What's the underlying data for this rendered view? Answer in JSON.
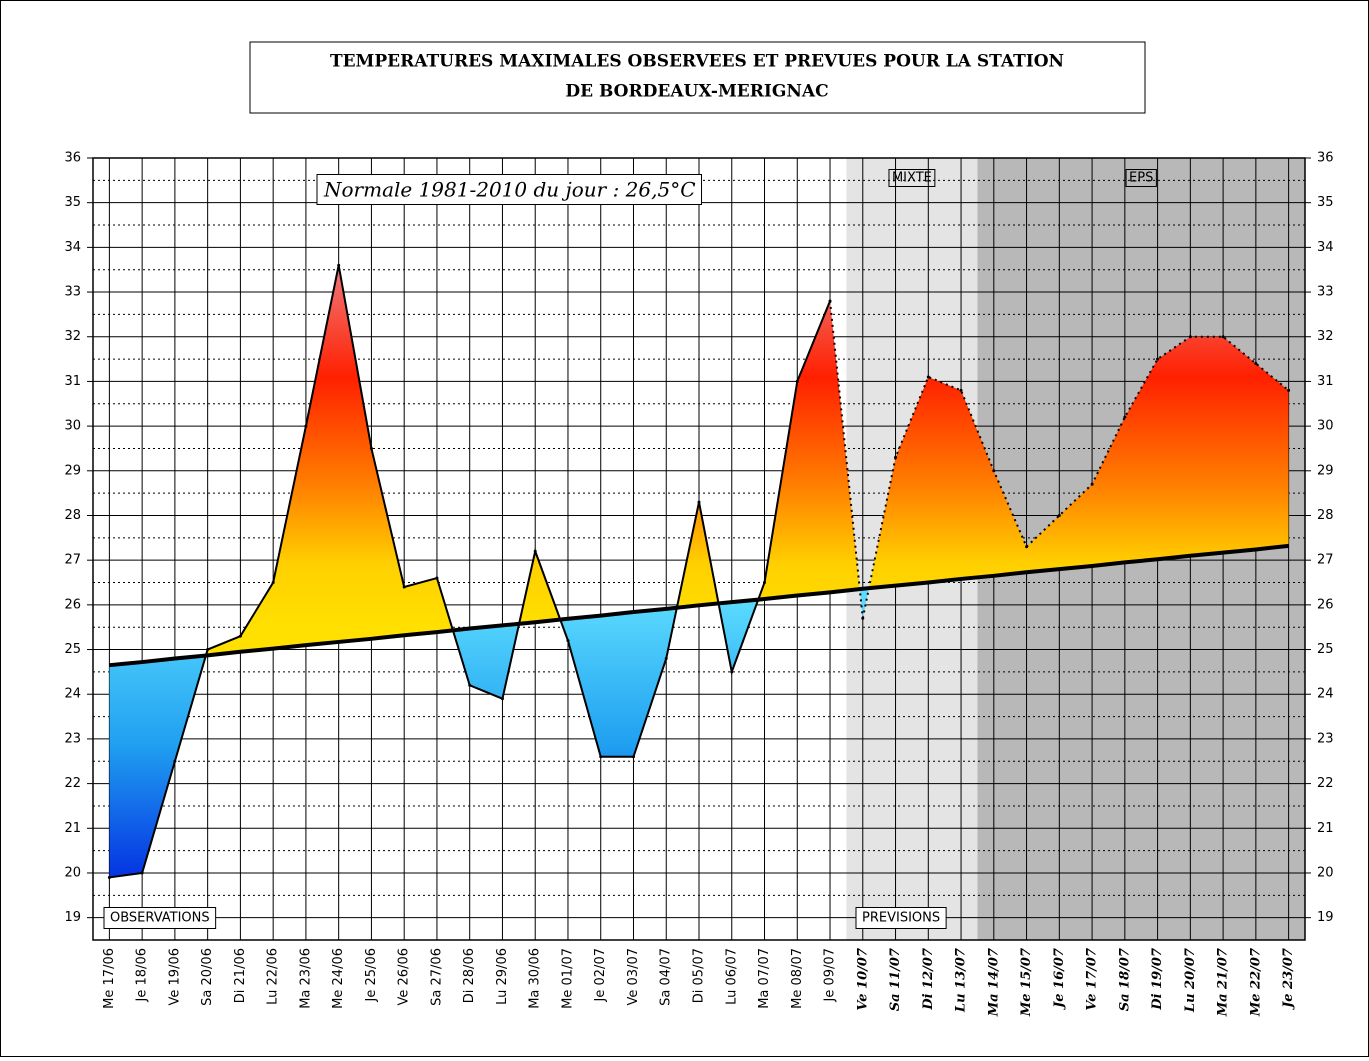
{
  "chart_data": {
    "type": "area",
    "title_lines": [
      "TEMPERATURES MAXIMALES OBSERVEES ET PREVUES POUR LA STATION",
      "DE BORDEAUX-MERIGNAC"
    ],
    "annotation": "Normale 1981-2010 du jour : 26,5°C",
    "categories": [
      "Me 17/06",
      "Je 18/06",
      "Ve 19/06",
      "Sa 20/06",
      "Di 21/06",
      "Lu 22/06",
      "Ma 23/06",
      "Me 24/06",
      "Je 25/06",
      "Ve 26/06",
      "Sa 27/06",
      "Di 28/06",
      "Lu 29/06",
      "Ma 30/06",
      "Me 01/07",
      "Je 02/07",
      "Ve 03/07",
      "Sa 04/07",
      "Di 05/07",
      "Lu 06/07",
      "Ma 07/07",
      "Me 08/07",
      "Je 09/07",
      "Ve 10/07",
      "Sa 11/07",
      "Di 12/07",
      "Lu 13/07",
      "Ma 14/07",
      "Me 15/07",
      "Je 16/07",
      "Ve 17/07",
      "Sa 18/07",
      "Di 19/07",
      "Lu 20/07",
      "Ma 21/07",
      "Me 22/07",
      "Je 23/07"
    ],
    "observed": [
      19.9,
      20.0,
      22.5,
      25.0,
      25.3,
      26.5,
      30.0,
      33.6,
      29.5,
      26.4,
      26.6,
      24.2,
      23.9,
      27.2,
      25.2,
      22.6,
      22.6,
      24.8,
      28.3,
      24.5,
      26.5,
      31.0,
      32.8,
      null,
      null,
      null,
      null,
      null,
      null,
      null,
      null,
      null,
      null,
      null,
      null,
      null,
      null
    ],
    "forecast": [
      null,
      null,
      null,
      null,
      null,
      null,
      null,
      null,
      null,
      null,
      null,
      null,
      null,
      null,
      null,
      null,
      null,
      null,
      null,
      null,
      null,
      null,
      null,
      25.7,
      29.3,
      31.1,
      30.8,
      29.0,
      27.3,
      28.0,
      28.7,
      30.2,
      31.5,
      32.0,
      32.0,
      31.4,
      30.8
    ],
    "normal": [
      24.65,
      24.72,
      24.8,
      24.87,
      24.95,
      25.02,
      25.1,
      25.17,
      25.24,
      25.32,
      25.39,
      25.47,
      25.54,
      25.61,
      25.69,
      25.76,
      25.84,
      25.91,
      25.99,
      26.06,
      26.13,
      26.21,
      26.28,
      26.36,
      26.43,
      26.5,
      26.58,
      26.65,
      26.73,
      26.8,
      26.87,
      26.95,
      27.02,
      27.1,
      27.17,
      27.24,
      27.32
    ],
    "labels": {
      "observations": "OBSERVATIONS",
      "previsions": "PREVISIONS"
    },
    "zones": [
      {
        "label": "MIXTE",
        "from": "Ve 10/07",
        "to": "Lu 13/07",
        "color": "#e4e4e4"
      },
      {
        "label": "EPS",
        "from": "Ma 14/07",
        "to": "Je 23/07",
        "color": "#b8b8b8"
      }
    ],
    "ylim": [
      18.5,
      36
    ],
    "yticks": [
      19,
      20,
      21,
      22,
      23,
      24,
      25,
      26,
      27,
      28,
      29,
      30,
      31,
      32,
      33,
      34,
      35,
      36
    ],
    "grid": true
  }
}
